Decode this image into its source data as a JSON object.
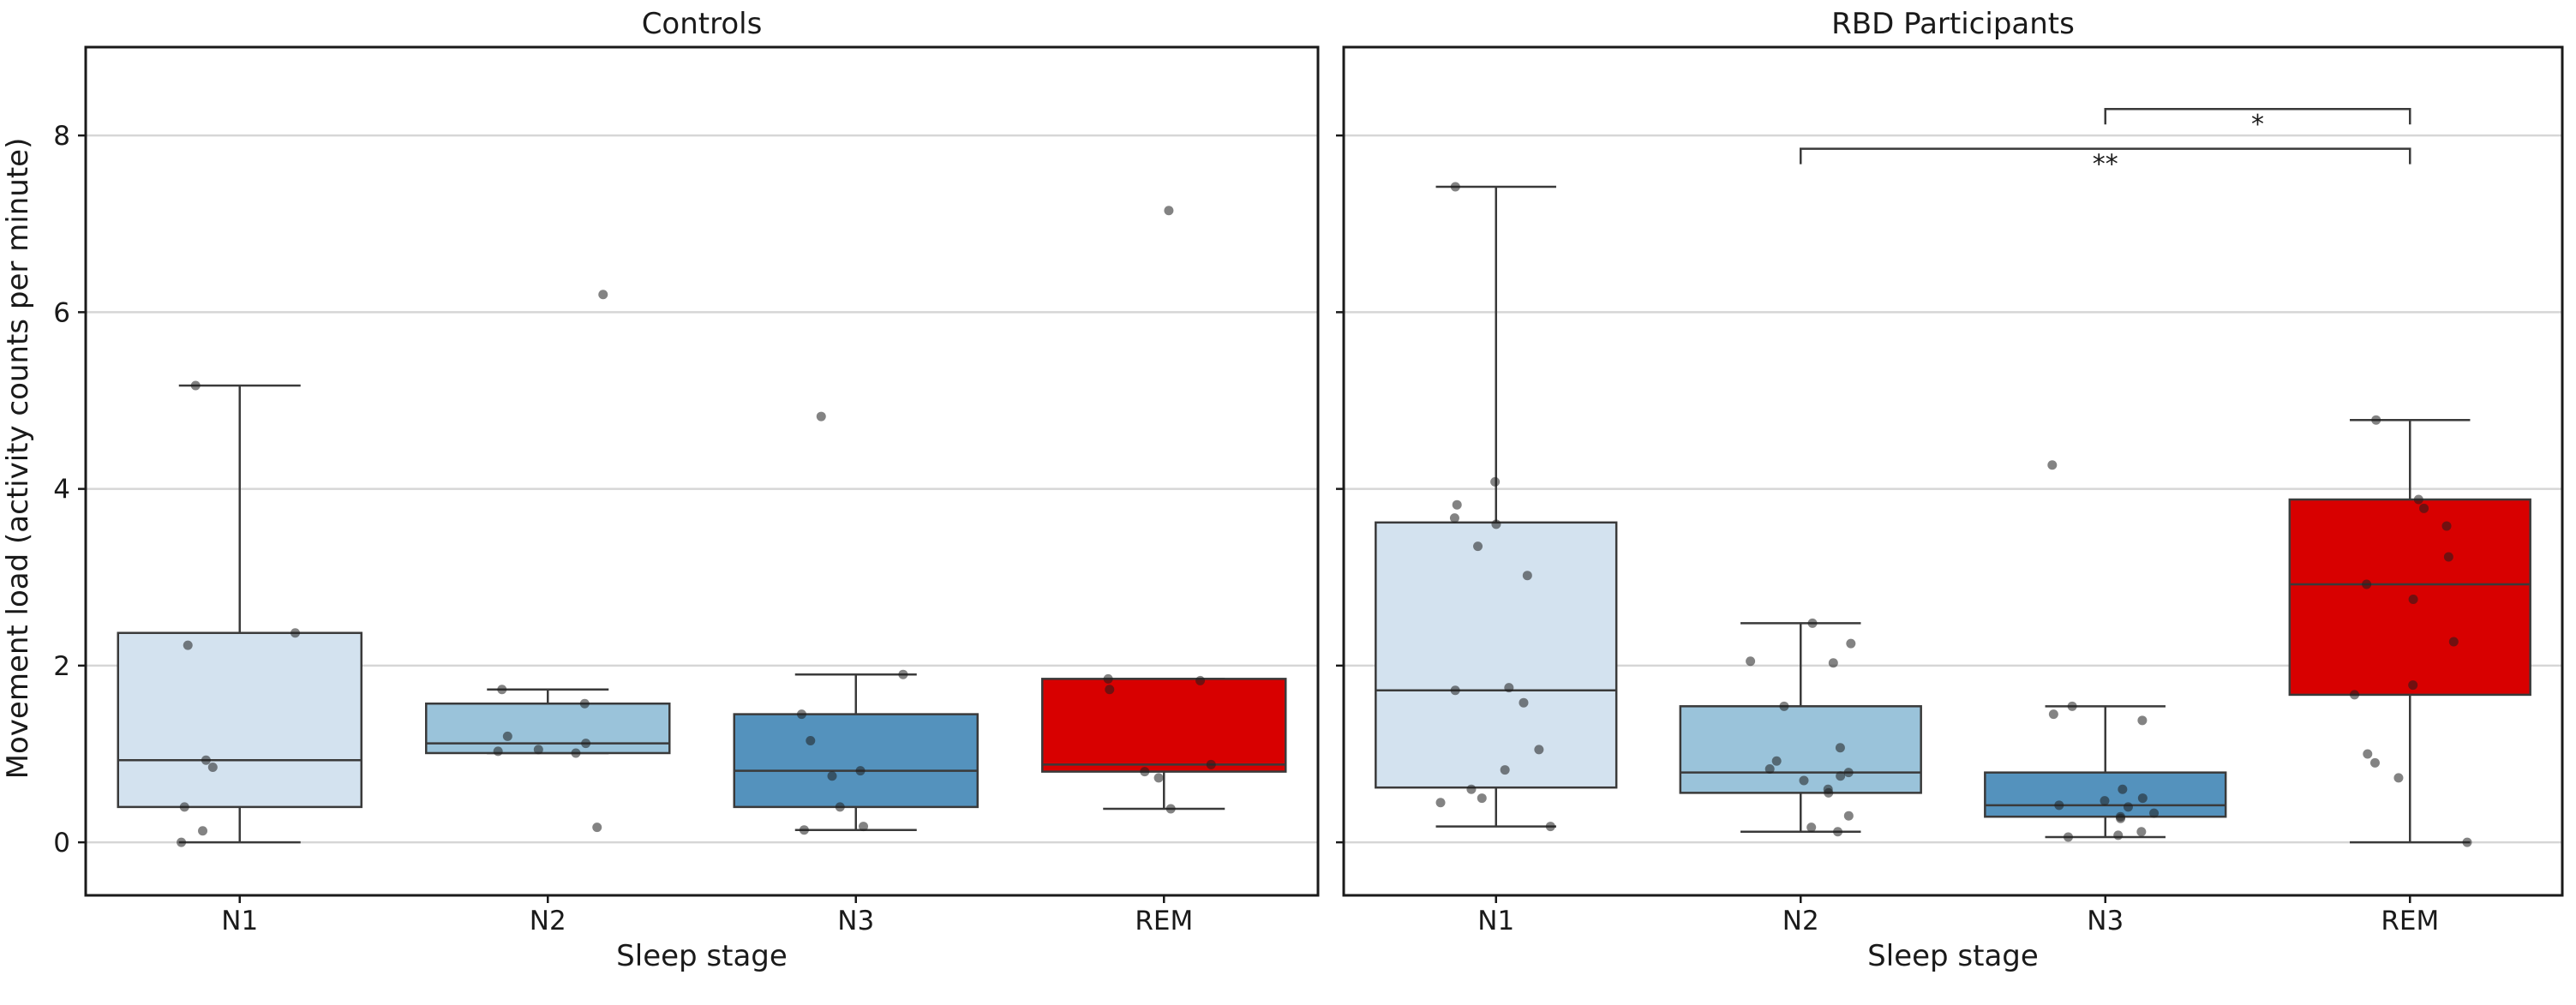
{
  "chart_data": {
    "type": "box",
    "ylabel": "Movement load (activity counts per minute)",
    "xlabel": "Sleep stage",
    "ylim": [
      -0.6,
      9.0
    ],
    "yticks": [
      0,
      2,
      4,
      6,
      8
    ],
    "grid": "horizontal",
    "categories": [
      "N1",
      "N2",
      "N3",
      "REM"
    ],
    "colors": {
      "N1": "#d3e2ef",
      "N2": "#9ac3da",
      "N3": "#5492bd",
      "REM": "#d80000"
    },
    "panels": [
      {
        "title": "Controls",
        "boxes": [
          {
            "category": "N1",
            "whisker_low": 0.0,
            "q1": 0.4,
            "median": 0.93,
            "q3": 2.37,
            "whisker_high": 5.17,
            "points": [
              0.0,
              0.13,
              0.4,
              0.85,
              0.93,
              2.23,
              2.37,
              5.17
            ]
          },
          {
            "category": "N2",
            "whisker_low": 1.01,
            "q1": 1.01,
            "median": 1.12,
            "q3": 1.57,
            "whisker_high": 1.73,
            "points": [
              0.17,
              1.01,
              1.03,
              1.05,
              1.12,
              1.2,
              1.57,
              1.73,
              6.2
            ]
          },
          {
            "category": "N3",
            "whisker_low": 0.14,
            "q1": 0.4,
            "median": 0.81,
            "q3": 1.45,
            "whisker_high": 1.9,
            "points": [
              0.14,
              0.18,
              0.4,
              0.75,
              0.81,
              1.15,
              1.45,
              1.9,
              4.82
            ]
          },
          {
            "category": "REM",
            "whisker_low": 0.38,
            "q1": 0.8,
            "median": 0.88,
            "q3": 1.85,
            "whisker_high": 1.85,
            "points": [
              0.38,
              0.73,
              0.8,
              0.88,
              1.73,
              1.83,
              1.85,
              7.15
            ]
          }
        ],
        "significance": []
      },
      {
        "title": "RBD Participants",
        "boxes": [
          {
            "category": "N1",
            "whisker_low": 0.18,
            "q1": 0.62,
            "median": 1.72,
            "q3": 3.62,
            "whisker_high": 7.42,
            "points": [
              0.18,
              0.45,
              0.5,
              0.6,
              0.82,
              1.05,
              1.58,
              1.72,
              1.75,
              3.02,
              3.35,
              3.6,
              3.67,
              3.82,
              4.08,
              7.42
            ]
          },
          {
            "category": "N2",
            "whisker_low": 0.12,
            "q1": 0.56,
            "median": 0.79,
            "q3": 1.54,
            "whisker_high": 2.48,
            "points": [
              0.12,
              0.17,
              0.3,
              0.56,
              0.6,
              0.7,
              0.75,
              0.79,
              0.83,
              0.92,
              1.07,
              1.54,
              2.03,
              2.05,
              2.25,
              2.48
            ]
          },
          {
            "category": "N3",
            "whisker_low": 0.06,
            "q1": 0.29,
            "median": 0.42,
            "q3": 0.79,
            "whisker_high": 1.54,
            "points": [
              0.06,
              0.08,
              0.12,
              0.27,
              0.29,
              0.33,
              0.4,
              0.42,
              0.47,
              0.5,
              0.6,
              1.38,
              1.45,
              1.54,
              4.27
            ]
          },
          {
            "category": "REM",
            "whisker_low": 0.0,
            "q1": 1.67,
            "median": 2.92,
            "q3": 3.88,
            "whisker_high": 4.78,
            "points": [
              0.0,
              0.73,
              0.9,
              1.0,
              1.67,
              1.78,
              2.27,
              2.75,
              2.92,
              3.23,
              3.58,
              3.78,
              3.88,
              4.78
            ]
          }
        ],
        "significance": [
          {
            "from": "N3",
            "to": "REM",
            "label": "*",
            "y": 8.3
          },
          {
            "from": "N2",
            "to": "REM",
            "label": "**",
            "y": 7.85
          }
        ]
      }
    ]
  }
}
